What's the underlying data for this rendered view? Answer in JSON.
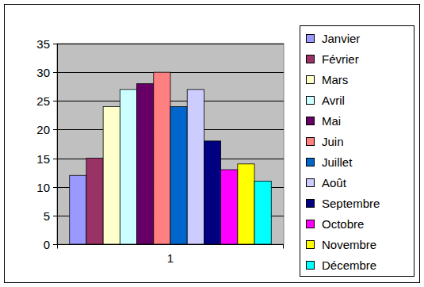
{
  "chart_data": {
    "type": "bar",
    "categories": [
      "1"
    ],
    "series": [
      {
        "name": "Janvier",
        "color": "#9999ff",
        "values": [
          12
        ]
      },
      {
        "name": "Février",
        "color": "#993366",
        "values": [
          15
        ]
      },
      {
        "name": "Mars",
        "color": "#ffffcc",
        "values": [
          24
        ]
      },
      {
        "name": "Avril",
        "color": "#ccffff",
        "values": [
          27
        ]
      },
      {
        "name": "Mai",
        "color": "#660066",
        "values": [
          28
        ]
      },
      {
        "name": "Juin",
        "color": "#ff8080",
        "values": [
          30
        ]
      },
      {
        "name": "Juillet",
        "color": "#0066cc",
        "values": [
          24
        ]
      },
      {
        "name": "Août",
        "color": "#ccccff",
        "values": [
          27
        ]
      },
      {
        "name": "Septembre",
        "color": "#000080",
        "values": [
          18
        ]
      },
      {
        "name": "Octobre",
        "color": "#ff00ff",
        "values": [
          13
        ]
      },
      {
        "name": "Novembre",
        "color": "#ffff00",
        "values": [
          14
        ]
      },
      {
        "name": "Décembre",
        "color": "#00ffff",
        "values": [
          11
        ]
      }
    ],
    "ylim": [
      0,
      35
    ],
    "yticks": [
      0,
      5,
      10,
      15,
      20,
      25,
      30,
      35
    ],
    "grid": true,
    "legend": "right"
  }
}
